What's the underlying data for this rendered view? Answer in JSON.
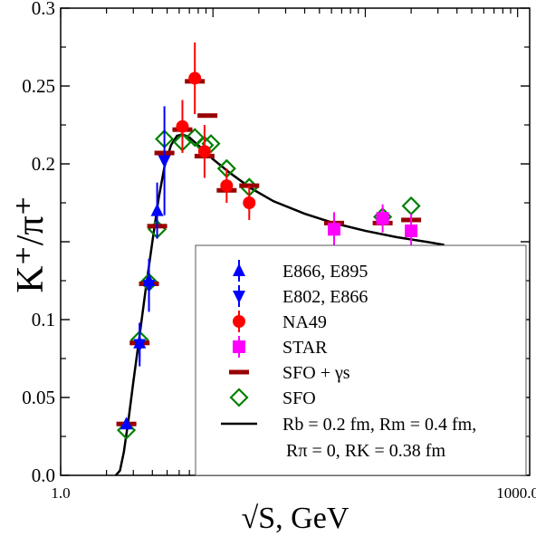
{
  "chart_data": {
    "type": "scatter",
    "xscale": "log",
    "xlim": [
      1.0,
      1200.0
    ],
    "ylim": [
      0.0,
      0.3
    ],
    "xlabel": "√S, GeV",
    "ylabel": "K⁺/π⁺",
    "x_ticks": [
      {
        "value": 1.0,
        "label": "1.0"
      },
      {
        "value": 1000.0,
        "label": "1000.0"
      }
    ],
    "y_ticks": [
      {
        "value": 0.0,
        "label": "0.0"
      },
      {
        "value": 0.05,
        "label": "0.05"
      },
      {
        "value": 0.1,
        "label": "0.1"
      },
      {
        "value": 0.15,
        "label": ""
      },
      {
        "value": 0.2,
        "label": "0.2"
      },
      {
        "value": 0.25,
        "label": "0.25"
      },
      {
        "value": 0.3,
        "label": "0.3"
      }
    ],
    "grid": false,
    "legend_position": "bottom-right",
    "series": [
      {
        "name": "E866, E895",
        "marker": "triangle-up",
        "color": "#0000ff",
        "points": [
          {
            "x": 2.7,
            "y": 0.033,
            "err": 0.002
          },
          {
            "x": 3.3,
            "y": 0.085,
            "err": 0.012
          },
          {
            "x": 3.8,
            "y": 0.125,
            "err": 0.014
          },
          {
            "x": 4.3,
            "y": 0.17,
            "err": 0.018
          }
        ]
      },
      {
        "name": "E802, E866",
        "marker": "triangle-down",
        "color": "#0000ff",
        "points": [
          {
            "x": 3.3,
            "y": 0.084,
            "err": 0.014
          },
          {
            "x": 3.8,
            "y": 0.122,
            "err": 0.017
          },
          {
            "x": 4.8,
            "y": 0.202,
            "err": 0.035
          }
        ]
      },
      {
        "name": "NA49",
        "marker": "circle",
        "color": "#ff0000",
        "points": [
          {
            "x": 6.3,
            "y": 0.224,
            "err": 0.017
          },
          {
            "x": 7.6,
            "y": 0.255,
            "err": 0.023
          },
          {
            "x": 8.8,
            "y": 0.208,
            "err": 0.017
          },
          {
            "x": 12.3,
            "y": 0.186,
            "err": 0.011
          },
          {
            "x": 17.3,
            "y": 0.175,
            "err": 0.011
          }
        ]
      },
      {
        "name": "STAR",
        "marker": "square",
        "color": "#ff00ff",
        "points": [
          {
            "x": 62.4,
            "y": 0.158,
            "err": 0.011
          },
          {
            "x": 130,
            "y": 0.165,
            "err": 0.009
          },
          {
            "x": 200,
            "y": 0.157,
            "err": 0.011
          }
        ]
      },
      {
        "name": "SFO + γs",
        "marker": "dash",
        "color": "#990000",
        "points": [
          {
            "x": 2.7,
            "y": 0.033
          },
          {
            "x": 3.3,
            "y": 0.085
          },
          {
            "x": 3.8,
            "y": 0.123
          },
          {
            "x": 4.3,
            "y": 0.16
          },
          {
            "x": 4.8,
            "y": 0.207
          },
          {
            "x": 6.3,
            "y": 0.222
          },
          {
            "x": 7.6,
            "y": 0.253
          },
          {
            "x": 8.8,
            "y": 0.205
          },
          {
            "x": 9.2,
            "y": 0.231
          },
          {
            "x": 12.3,
            "y": 0.183
          },
          {
            "x": 17.3,
            "y": 0.186
          },
          {
            "x": 62.4,
            "y": 0.162
          },
          {
            "x": 130,
            "y": 0.162
          },
          {
            "x": 200,
            "y": 0.164
          }
        ]
      },
      {
        "name": "SFO",
        "marker": "diamond-open",
        "color": "#008000",
        "points": [
          {
            "x": 2.7,
            "y": 0.029
          },
          {
            "x": 3.3,
            "y": 0.087
          },
          {
            "x": 3.8,
            "y": 0.124
          },
          {
            "x": 4.3,
            "y": 0.158
          },
          {
            "x": 4.8,
            "y": 0.216
          },
          {
            "x": 6.3,
            "y": 0.214
          },
          {
            "x": 7.6,
            "y": 0.217
          },
          {
            "x": 8.8,
            "y": 0.212
          },
          {
            "x": 9.7,
            "y": 0.213
          },
          {
            "x": 12.3,
            "y": 0.197
          },
          {
            "x": 17.3,
            "y": 0.185
          },
          {
            "x": 130,
            "y": 0.166
          },
          {
            "x": 200,
            "y": 0.173
          }
        ]
      },
      {
        "name": "Rb = 0.2 fm, Rm = 0.4 fm, Rπ = 0, RK = 0.38 fm",
        "marker": "line",
        "color": "#000000",
        "points": [
          {
            "x": 2.3,
            "y": 0.0
          },
          {
            "x": 2.45,
            "y": 0.003
          },
          {
            "x": 2.6,
            "y": 0.015
          },
          {
            "x": 2.8,
            "y": 0.037
          },
          {
            "x": 3.0,
            "y": 0.06
          },
          {
            "x": 3.3,
            "y": 0.09
          },
          {
            "x": 3.6,
            "y": 0.118
          },
          {
            "x": 4.0,
            "y": 0.15
          },
          {
            "x": 4.4,
            "y": 0.178
          },
          {
            "x": 4.8,
            "y": 0.198
          },
          {
            "x": 5.3,
            "y": 0.212
          },
          {
            "x": 5.8,
            "y": 0.218
          },
          {
            "x": 6.3,
            "y": 0.219
          },
          {
            "x": 7.0,
            "y": 0.217
          },
          {
            "x": 8.0,
            "y": 0.212
          },
          {
            "x": 10.0,
            "y": 0.203
          },
          {
            "x": 13.0,
            "y": 0.194
          },
          {
            "x": 18.0,
            "y": 0.184
          },
          {
            "x": 25.0,
            "y": 0.176
          },
          {
            "x": 40.0,
            "y": 0.168
          },
          {
            "x": 62.0,
            "y": 0.162
          },
          {
            "x": 100.0,
            "y": 0.157
          },
          {
            "x": 160.0,
            "y": 0.153
          },
          {
            "x": 250.0,
            "y": 0.15
          },
          {
            "x": 330.0,
            "y": 0.148
          }
        ]
      }
    ],
    "legend": [
      {
        "marker": "triangle-up",
        "color": "#0000ff",
        "label": "E866, E895"
      },
      {
        "marker": "triangle-down",
        "color": "#0000ff",
        "label": "E802, E866"
      },
      {
        "marker": "circle",
        "color": "#ff0000",
        "label": "NA49"
      },
      {
        "marker": "square",
        "color": "#ff00ff",
        "label": "STAR"
      },
      {
        "marker": "dash",
        "color": "#990000",
        "label": "SFO + γs"
      },
      {
        "marker": "diamond-open",
        "color": "#008000",
        "label": "SFO"
      },
      {
        "marker": "line",
        "color": "#000000",
        "label": "Rb = 0.2 fm, Rm = 0.4 fm,",
        "label2": "Rπ = 0, RK = 0.38 fm"
      }
    ]
  }
}
